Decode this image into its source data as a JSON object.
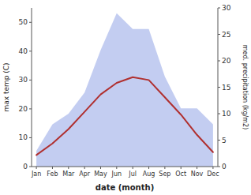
{
  "chart_data": {
    "type": "line",
    "categories": [
      "Jan",
      "Feb",
      "Mar",
      "Apr",
      "May",
      "Jun",
      "Jul",
      "Aug",
      "Sep",
      "Oct",
      "Nov",
      "Dec"
    ],
    "series": [
      {
        "type": "area",
        "color": "#b8c4ee",
        "axis": "y2",
        "values": [
          3,
          8,
          10,
          14,
          22,
          29,
          26,
          26,
          17,
          11,
          11,
          8
        ]
      },
      {
        "type": "line",
        "color": "#b03030",
        "values": [
          4,
          8,
          13,
          19,
          25,
          29,
          31,
          30,
          24,
          18,
          11,
          5
        ]
      }
    ],
    "ylim": [
      0,
      55
    ],
    "yticks": [
      0,
      10,
      20,
      30,
      40,
      50
    ],
    "y2lim": [
      0,
      30
    ],
    "y2ticks": [
      0,
      5,
      10,
      15,
      20,
      25,
      30
    ],
    "xlabel": "date (month)",
    "ylabel": "max temp (C)",
    "y2label": "med. precipitation (kg/m2)",
    "grid": false
  }
}
